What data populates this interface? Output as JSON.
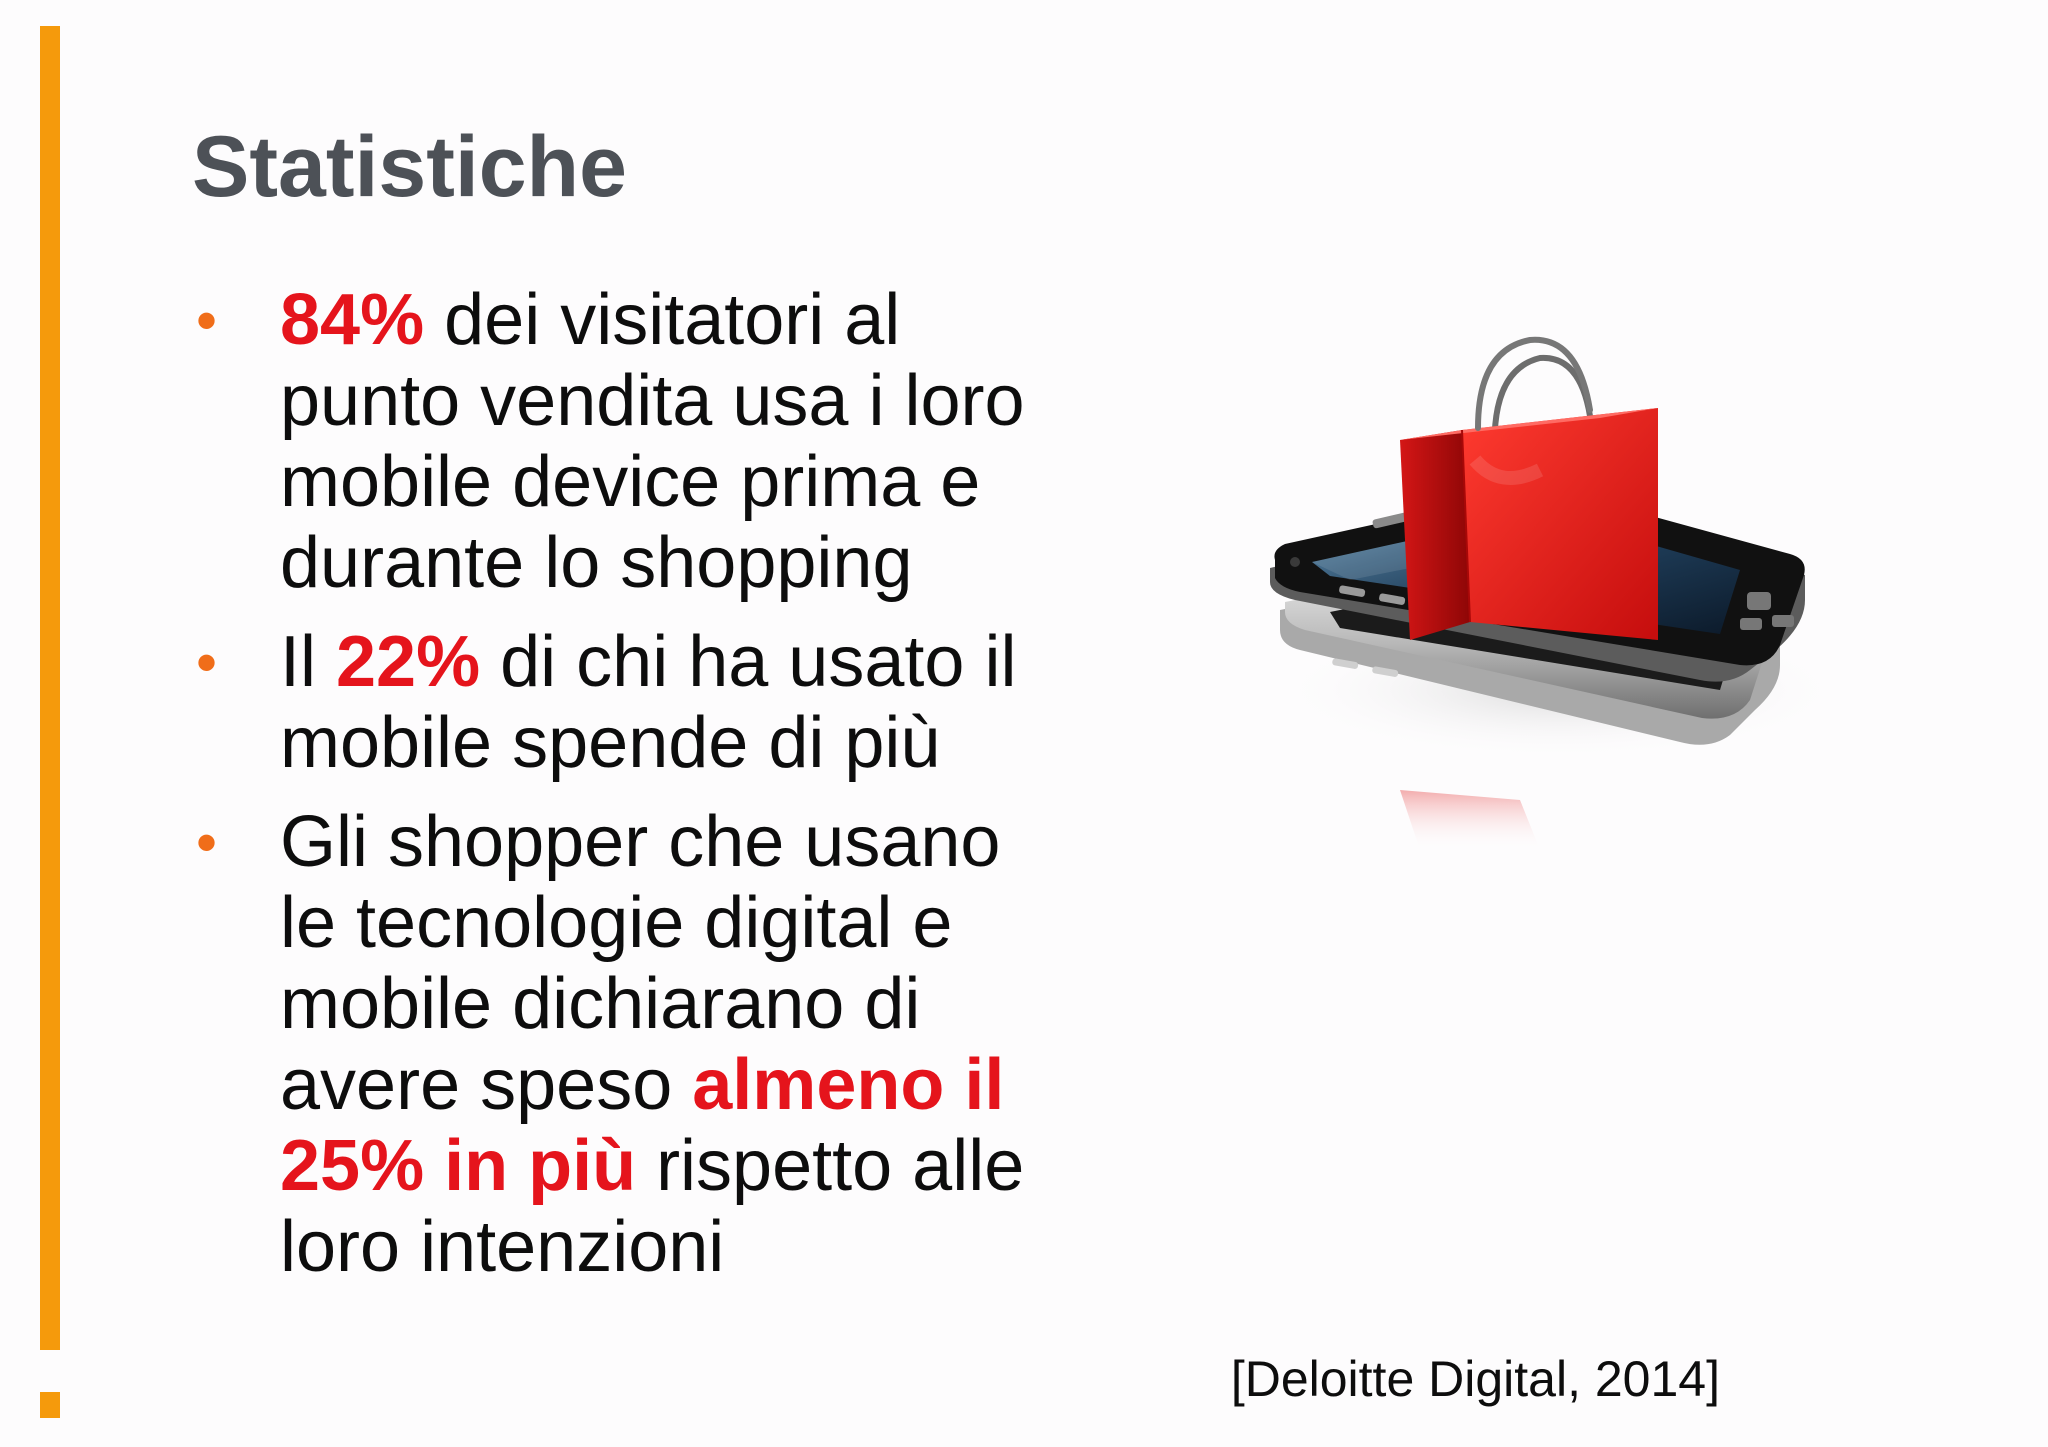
{
  "slide": {
    "title": "Statistiche",
    "bullets": [
      {
        "parts": [
          {
            "text": "84%",
            "highlight": true
          },
          {
            "text": " dei visitatori al punto vendita usa i loro mobile device prima e durante lo shopping",
            "highlight": false
          }
        ]
      },
      {
        "parts": [
          {
            "text": "Il ",
            "highlight": false
          },
          {
            "text": "22%",
            "highlight": true
          },
          {
            "text": " di chi ha usato il mobile spende di più",
            "highlight": false
          }
        ]
      },
      {
        "parts": [
          {
            "text": "Gli shopper che usano le tecnologie digital e mobile dichiarano di avere speso ",
            "highlight": false
          },
          {
            "text": "almeno il 25% in più",
            "highlight": true
          },
          {
            "text": " rispetto alle loro intenzioni",
            "highlight": false
          }
        ]
      }
    ],
    "citation": "[Deloitte Digital, 2014]",
    "illustration": {
      "icon": "smartphone-shopping-bag-icon"
    }
  },
  "colors": {
    "accent": "#f59a0c",
    "bullet": "#f06d19",
    "highlight": "#e5141c",
    "title": "#4d5157",
    "text": "#0d0d0d"
  }
}
